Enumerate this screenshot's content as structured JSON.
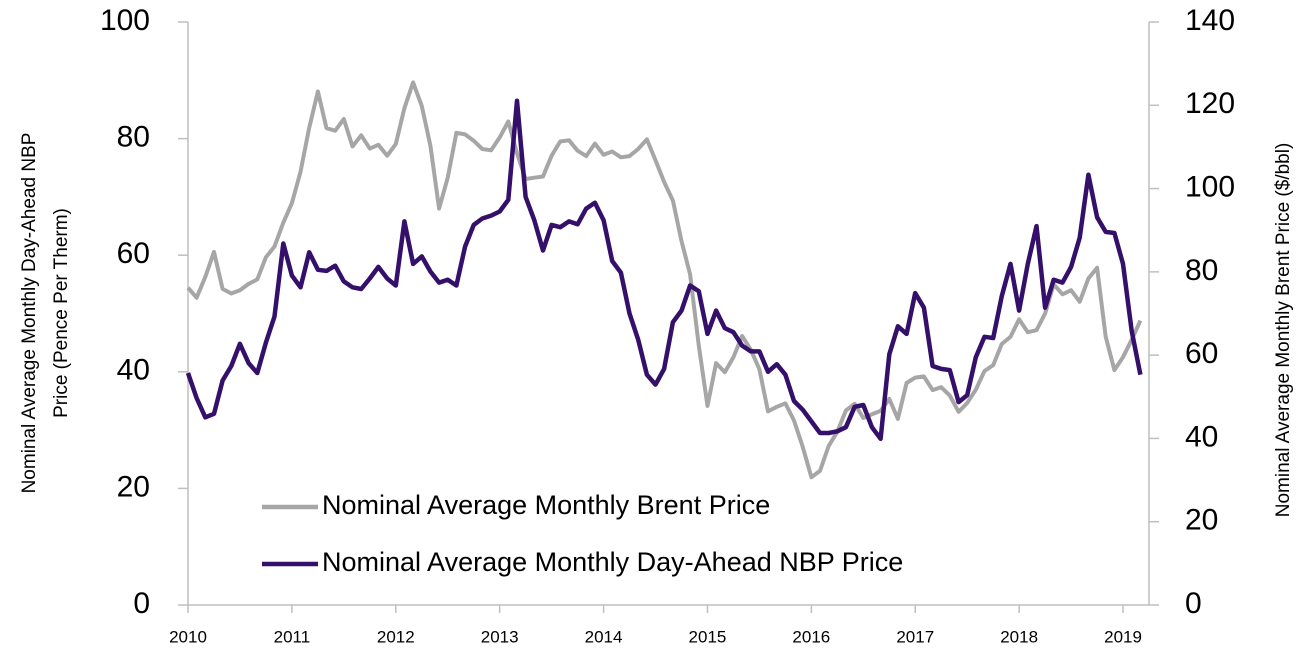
{
  "chart_data": {
    "type": "line",
    "ylabel": [
      "Nominal Average Monthly Day-Ahead NBP",
      "Price (Pence Per Therm)"
    ],
    "y2label": "Nominal Average Monthly Brent Price ($/bbl)",
    "xlim": [
      2010,
      2019.25
    ],
    "xticks": [
      2010,
      2011,
      2012,
      2013,
      2014,
      2015,
      2016,
      2017,
      2018,
      2019
    ],
    "ylim": [
      0,
      100
    ],
    "yticks": [
      0,
      20,
      40,
      60,
      80,
      100
    ],
    "y2lim": [
      0,
      140
    ],
    "y2ticks": [
      0,
      20,
      40,
      60,
      80,
      100,
      120,
      140
    ],
    "legend": "lower left",
    "grid": false,
    "x": [
      2010,
      2010.083,
      2010.167,
      2010.25,
      2010.333,
      2010.417,
      2010.5,
      2010.583,
      2010.667,
      2010.75,
      2010.833,
      2010.917,
      2011,
      2011.083,
      2011.167,
      2011.25,
      2011.333,
      2011.417,
      2011.5,
      2011.583,
      2011.667,
      2011.75,
      2011.833,
      2011.917,
      2012,
      2012.083,
      2012.167,
      2012.25,
      2012.333,
      2012.417,
      2012.5,
      2012.583,
      2012.667,
      2012.75,
      2012.833,
      2012.917,
      2013,
      2013.083,
      2013.167,
      2013.25,
      2013.333,
      2013.417,
      2013.5,
      2013.583,
      2013.667,
      2013.75,
      2013.833,
      2013.917,
      2014,
      2014.083,
      2014.167,
      2014.25,
      2014.333,
      2014.417,
      2014.5,
      2014.583,
      2014.667,
      2014.75,
      2014.833,
      2014.917,
      2015,
      2015.083,
      2015.167,
      2015.25,
      2015.333,
      2015.417,
      2015.5,
      2015.583,
      2015.667,
      2015.75,
      2015.833,
      2015.917,
      2016,
      2016.083,
      2016.167,
      2016.25,
      2016.333,
      2016.417,
      2016.5,
      2016.583,
      2016.667,
      2016.75,
      2016.833,
      2016.917,
      2017,
      2017.083,
      2017.167,
      2017.25,
      2017.333,
      2017.417,
      2017.5,
      2017.583,
      2017.667,
      2017.75,
      2017.833,
      2017.917,
      2018,
      2018.083,
      2018.167,
      2018.25,
      2018.333,
      2018.417,
      2018.5,
      2018.583,
      2018.667,
      2018.75,
      2018.833,
      2018.917,
      2019,
      2019.083,
      2019.167
    ],
    "series": [
      {
        "name": "Nominal Average Monthly Brent Price",
        "color": "#a6a6a6",
        "axis": "y2",
        "values": [
          76.2,
          73.8,
          78.8,
          84.8,
          75.9,
          74.8,
          75.6,
          77.1,
          78.2,
          83.5,
          86.1,
          91.8,
          96.5,
          104,
          114.6,
          123.3,
          114.5,
          113.9,
          116.7,
          110.1,
          112.8,
          109.6,
          110.5,
          107.9,
          110.7,
          119.3,
          125.5,
          119.8,
          110.3,
          95.2,
          102.6,
          113.4,
          113,
          111.5,
          109.5,
          109.2,
          112.3,
          116.1,
          108.5,
          102.3,
          102.6,
          102.9,
          107.9,
          111.3,
          111.6,
          109.1,
          107.8,
          110.8,
          108.1,
          108.9,
          107.5,
          107.8,
          109.5,
          111.8,
          106.8,
          101.6,
          97.1,
          87.4,
          79.4,
          62.3,
          47.8,
          58.1,
          55.9,
          59.5,
          64.6,
          61.3,
          56.6,
          46.5,
          47.6,
          48.4,
          44.3,
          38,
          30.7,
          32.2,
          38.2,
          41.6,
          46.7,
          48.3,
          44.9,
          45.8,
          46.6,
          49.5,
          44.7,
          53.3,
          54.6,
          54.9,
          51.6,
          52.3,
          50.3,
          46.4,
          48.5,
          51.7,
          56.2,
          57.6,
          62.7,
          64.4,
          68.6,
          65.5,
          66,
          70,
          77,
          74.6,
          75.6,
          72.8,
          78.4,
          81,
          64.4,
          56.4,
          59.5,
          63.7,
          68.3
        ]
      },
      {
        "name": "Nominal Average Monthly Day-Ahead NBP Price",
        "color": "#34106a",
        "values": [
          39.8,
          35.5,
          32.2,
          32.8,
          38.5,
          41,
          44.8,
          41.5,
          39.8,
          45,
          49.5,
          62,
          56.5,
          54.5,
          60.5,
          57.5,
          57.3,
          58.2,
          55.5,
          54.5,
          54.2,
          56,
          58,
          56,
          54.8,
          65.8,
          58.5,
          59.8,
          57.2,
          55.3,
          55.8,
          54.8,
          61.5,
          65.2,
          66.3,
          66.8,
          67.5,
          69.5,
          86.5,
          70,
          66,
          60.8,
          65.2,
          64.8,
          65.8,
          65.3,
          68,
          69,
          66,
          59,
          57,
          50,
          45.5,
          39.5,
          37.8,
          40.5,
          48.5,
          50.5,
          54.8,
          53.8,
          46.5,
          50.5,
          47.5,
          46.8,
          44.5,
          43.5,
          43.5,
          40,
          41.3,
          39.5,
          35,
          33.5,
          31.5,
          29.5,
          29.5,
          29.8,
          30.5,
          34,
          34.3,
          30.5,
          28.5,
          43,
          47.8,
          46.5,
          53.5,
          51,
          41,
          40.5,
          40.3,
          34.8,
          36,
          42.5,
          46,
          45.8,
          53,
          58.5,
          50.5,
          58.5,
          65,
          51,
          55.8,
          55.3,
          58,
          63,
          73.8,
          66.5,
          64,
          63.8,
          58.5,
          47,
          39.5
        ]
      }
    ]
  }
}
